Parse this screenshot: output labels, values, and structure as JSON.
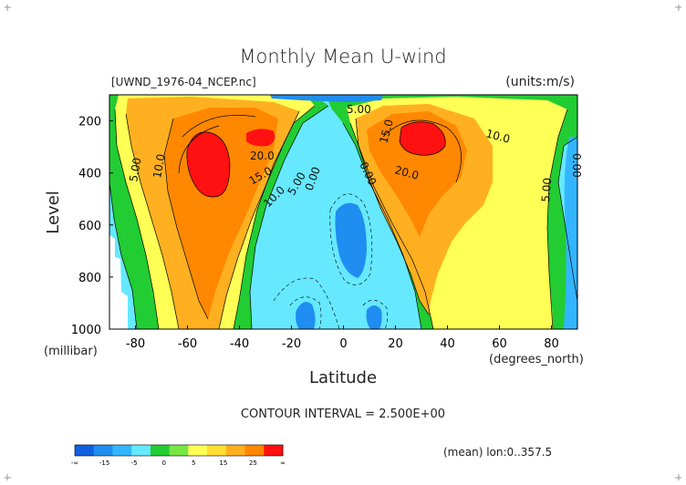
{
  "chart_data": {
    "type": "heatmap",
    "title": "Monthly Mean U-wind",
    "file_label": "[UWND_1976-04_NCEP.nc]",
    "units_label": "(units:m/s)",
    "xlabel": "Latitude",
    "x_units": "(degrees_north)",
    "ylabel": "Level",
    "y_units": "(millibar)",
    "x_ticks": [
      "-80",
      "-60",
      "-40",
      "-20",
      "0",
      "20",
      "40",
      "60",
      "80"
    ],
    "y_ticks": [
      "200",
      "400",
      "600",
      "800",
      "1000"
    ],
    "xlim": [
      -90,
      90
    ],
    "ylim": [
      1000,
      100
    ],
    "contour_interval_text": "CONTOUR INTERVAL = 2.500E+00",
    "contour_labels": [
      "5.00",
      "10.0",
      "20.0",
      "15.0",
      "10.0",
      "5.00",
      "0.00",
      "5.00",
      "0.00",
      "15.0",
      "20.0",
      "10.0",
      "5.00",
      "0.00"
    ],
    "colorbar": {
      "tick_labels": [
        "-∞",
        "-15",
        "-5",
        "0",
        "5",
        "15",
        "25",
        "∞"
      ],
      "colors": [
        "#1060e0",
        "#1f8ef0",
        "#33b6ff",
        "#66e8ff",
        "#22cc33",
        "#77e644",
        "#ffff55",
        "#ffdd33",
        "#ffb020",
        "#ff8800",
        "#ff1111"
      ]
    },
    "footer_note": "(mean) lon:0..357.5",
    "jets": [
      {
        "name": "",
        "lat": -55,
        "level": 250,
        "max": 27.5
      },
      {
        "name": "",
        "lat": 27,
        "level": 200,
        "max": 27.5
      }
    ]
  }
}
